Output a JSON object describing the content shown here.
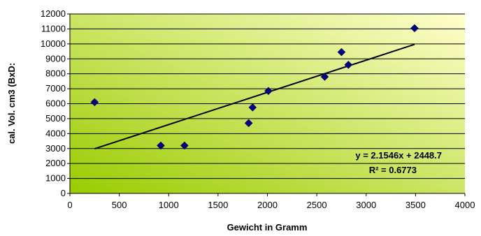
{
  "chart_data": {
    "type": "scatter",
    "xlabel": "Gewicht in Gramm",
    "ylabel": "cal. Vol. cm3 (BxD:",
    "xlim": [
      0,
      4000
    ],
    "ylim": [
      0,
      12000
    ],
    "x_ticks": [
      "0",
      "500",
      "1000",
      "1500",
      "2000",
      "2500",
      "3000",
      "3500",
      "4000"
    ],
    "y_ticks": [
      "0",
      "1000",
      "2000",
      "3000",
      "4000",
      "5000",
      "6000",
      "7000",
      "8000",
      "9000",
      "10000",
      "11000",
      "12000"
    ],
    "grid": "horizontal",
    "background_gradient": [
      "#99cc00",
      "#ffffcc"
    ],
    "marker_color": "#000080",
    "trend_color": "#000000",
    "series": [
      {
        "points": [
          [
            250,
            6100
          ],
          [
            920,
            3200
          ],
          [
            1160,
            3200
          ],
          [
            1810,
            4700
          ],
          [
            1850,
            5750
          ],
          [
            2010,
            6850
          ],
          [
            2580,
            7800
          ],
          [
            2750,
            9450
          ],
          [
            2820,
            8600
          ],
          [
            3490,
            11050
          ]
        ]
      }
    ],
    "trendline": {
      "slope": 2.1546,
      "intercept": 2448.7,
      "x_range": [
        250,
        3490
      ],
      "equation": "y = 2.1546x + 2448.7",
      "r_squared_label": "R² = 0.6773"
    }
  }
}
